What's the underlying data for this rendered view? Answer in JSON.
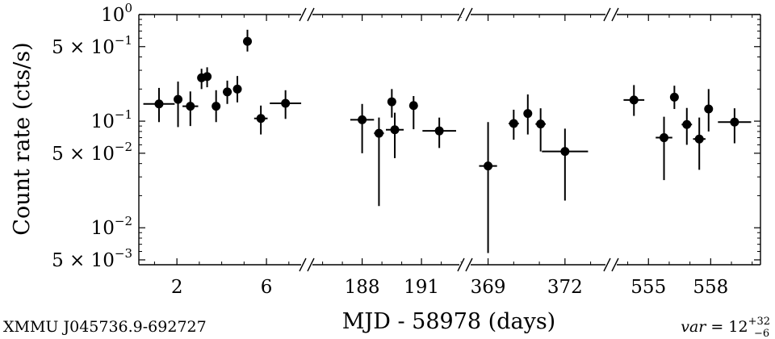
{
  "chart_data": {
    "type": "scatter",
    "subtype": "errorbar-broken-x-axis",
    "title": "",
    "xlabel": "MJD - 58978 (days)",
    "ylabel": "Count rate (cts/s)",
    "source_name": "XMMU J045736.9-692727",
    "variability": {
      "prefix": "var = ",
      "value": "12",
      "upper": "+32",
      "lower": "−6"
    },
    "yscale": "log",
    "ylim": [
      0.0045,
      1.0
    ],
    "y_ticks": [
      {
        "value": 1.0,
        "mant": "",
        "base": "10",
        "exp": "0"
      },
      {
        "value": 0.5,
        "mant": "5 × ",
        "base": "10",
        "exp": "−1"
      },
      {
        "value": 0.1,
        "mant": "",
        "base": "10",
        "exp": "−1"
      },
      {
        "value": 0.05,
        "mant": "5 × ",
        "base": "10",
        "exp": "−2"
      },
      {
        "value": 0.01,
        "mant": "",
        "base": "10",
        "exp": "−2"
      },
      {
        "value": 0.005,
        "mant": "5 × ",
        "base": "10",
        "exp": "−3"
      }
    ],
    "grid": false,
    "marker_color": "#000000",
    "segments": [
      {
        "xlim": [
          0.3,
          7.8
        ],
        "x_ticks": [
          2,
          6
        ],
        "points": [
          {
            "x": 1.2,
            "xerr": 0.7,
            "y": 0.145,
            "ylo": 0.098,
            "yhi": 0.205
          },
          {
            "x": 2.05,
            "xerr": 0.15,
            "y": 0.16,
            "ylo": 0.088,
            "yhi": 0.235
          },
          {
            "x": 2.6,
            "xerr": 0.35,
            "y": 0.138,
            "ylo": 0.09,
            "yhi": 0.19
          },
          {
            "x": 3.1,
            "xerr": 0.15,
            "y": 0.255,
            "ylo": 0.2,
            "yhi": 0.31
          },
          {
            "x": 3.35,
            "xerr": 0.1,
            "y": 0.262,
            "ylo": 0.208,
            "yhi": 0.32
          },
          {
            "x": 3.75,
            "xerr": 0.15,
            "y": 0.138,
            "ylo": 0.098,
            "yhi": 0.195
          },
          {
            "x": 4.25,
            "xerr": 0.2,
            "y": 0.188,
            "ylo": 0.145,
            "yhi": 0.24
          },
          {
            "x": 4.7,
            "xerr": 0.15,
            "y": 0.2,
            "ylo": 0.15,
            "yhi": 0.265
          },
          {
            "x": 5.15,
            "xerr": 0.05,
            "y": 0.56,
            "ylo": 0.45,
            "yhi": 0.72
          },
          {
            "x": 5.75,
            "xerr": 0.3,
            "y": 0.106,
            "ylo": 0.075,
            "yhi": 0.14
          },
          {
            "x": 6.85,
            "xerr": 0.7,
            "y": 0.147,
            "ylo": 0.105,
            "yhi": 0.195
          }
        ]
      },
      {
        "xlim": [
          185.2,
          193.2
        ],
        "x_ticks": [
          188,
          191
        ],
        "points": [
          {
            "x": 188.0,
            "xerr": 0.6,
            "y": 0.103,
            "ylo": 0.05,
            "yhi": 0.145
          },
          {
            "x": 188.85,
            "xerr": 0.25,
            "y": 0.077,
            "ylo": 0.016,
            "yhi": 0.108
          },
          {
            "x": 189.5,
            "xerr": 0.05,
            "y": 0.152,
            "ylo": 0.108,
            "yhi": 0.2
          },
          {
            "x": 189.65,
            "xerr": 0.45,
            "y": 0.083,
            "ylo": 0.045,
            "yhi": 0.12
          },
          {
            "x": 190.6,
            "xerr": 0.05,
            "y": 0.14,
            "ylo": 0.084,
            "yhi": 0.172
          },
          {
            "x": 191.9,
            "xerr": 0.85,
            "y": 0.081,
            "ylo": 0.056,
            "yhi": 0.108
          }
        ]
      },
      {
        "xlim": [
          368.1,
          373.8
        ],
        "x_ticks": [
          369,
          372
        ],
        "points": [
          {
            "x": 369.0,
            "xerr": 0.35,
            "y": 0.038,
            "ylo": 0.0058,
            "yhi": 0.098
          },
          {
            "x": 370.0,
            "xerr": 0.2,
            "y": 0.095,
            "ylo": 0.067,
            "yhi": 0.128
          },
          {
            "x": 370.55,
            "xerr": 0.05,
            "y": 0.118,
            "ylo": 0.075,
            "yhi": 0.178
          },
          {
            "x": 371.05,
            "xerr": 0.2,
            "y": 0.094,
            "ylo": 0.052,
            "yhi": 0.132
          },
          {
            "x": 372.0,
            "xerr": 0.9,
            "y": 0.052,
            "ylo": 0.018,
            "yhi": 0.085
          }
        ]
      },
      {
        "xlim": [
          553.2,
          560.4
        ],
        "x_ticks": [
          555,
          558
        ],
        "points": [
          {
            "x": 554.3,
            "xerr": 0.5,
            "y": 0.158,
            "ylo": 0.112,
            "yhi": 0.218
          },
          {
            "x": 555.75,
            "xerr": 0.4,
            "y": 0.07,
            "ylo": 0.028,
            "yhi": 0.11
          },
          {
            "x": 556.25,
            "xerr": 0.05,
            "y": 0.168,
            "ylo": 0.13,
            "yhi": 0.215
          },
          {
            "x": 556.85,
            "xerr": 0.25,
            "y": 0.093,
            "ylo": 0.06,
            "yhi": 0.133
          },
          {
            "x": 557.45,
            "xerr": 0.3,
            "y": 0.068,
            "ylo": 0.035,
            "yhi": 0.108
          },
          {
            "x": 557.9,
            "xerr": 0.05,
            "y": 0.13,
            "ylo": 0.08,
            "yhi": 0.2
          },
          {
            "x": 559.15,
            "xerr": 0.8,
            "y": 0.098,
            "ylo": 0.062,
            "yhi": 0.132
          }
        ]
      }
    ]
  }
}
